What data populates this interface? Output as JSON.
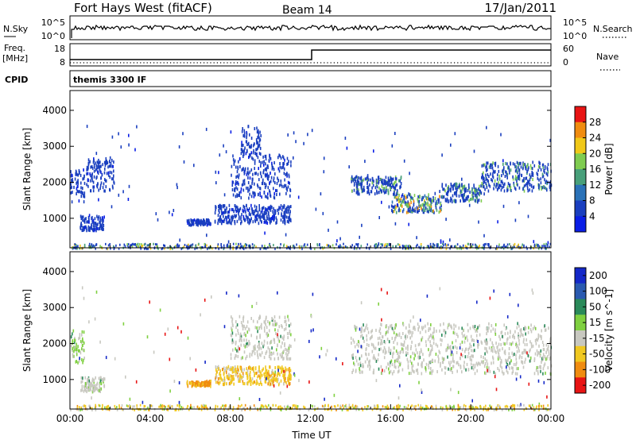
{
  "header": {
    "station": "Fort Hays West (fitACF)",
    "beam": "Beam 14",
    "date": "17/Jan/2011"
  },
  "status_panels": {
    "nsky_label": "N.Sky",
    "nsky_top_tick": "10^5",
    "nsky_bottom_tick": "10^0",
    "nsearch_label": "N.Search",
    "nsearch_top_tick": "10^5",
    "nsearch_bottom_tick": "10^0",
    "freq_label_1": "Freq.",
    "freq_label_2": "[MHz]",
    "freq_top_tick": "18",
    "freq_bottom_tick": "8",
    "nave_label": "Nave",
    "nave_top_tick": "60",
    "nave_bottom_tick": "0",
    "cpid_label": "CPID",
    "cpid_value": "themis 3300 IF"
  },
  "chart_data": [
    {
      "type": "heatmap",
      "panel": "power",
      "ylabel": "Slant Range [km]",
      "y_ticks": [
        "1000",
        "2000",
        "3000",
        "4000"
      ],
      "ylim": [
        180,
        4550
      ],
      "colorbar_label": "Power [dB]",
      "colorbar_ticks": [
        "4",
        "8",
        "12",
        "16",
        "20",
        "24",
        "28"
      ],
      "colors": [
        "#0a1ee6",
        "#1a3fbf",
        "#2a72b8",
        "#48a07a",
        "#7fcc50",
        "#f0c818",
        "#f08c10",
        "#e81414"
      ],
      "echo_regions": [
        {
          "x_hours": [
            0.0,
            0.7
          ],
          "range_km": [
            1500,
            2400
          ],
          "level": 1
        },
        {
          "x_hours": [
            0.5,
            1.7
          ],
          "range_km": [
            700,
            1100
          ],
          "level": 1
        },
        {
          "x_hours": [
            0.8,
            2.2
          ],
          "range_km": [
            1800,
            2700
          ],
          "level": 1
        },
        {
          "x_hours": [
            5.8,
            7.0
          ],
          "range_km": [
            850,
            1000
          ],
          "level": 1
        },
        {
          "x_hours": [
            7.2,
            11.0
          ],
          "range_km": [
            900,
            1400
          ],
          "level": 1
        },
        {
          "x_hours": [
            8.0,
            11.0
          ],
          "range_km": [
            1600,
            2800
          ],
          "level": 1
        },
        {
          "x_hours": [
            8.5,
            9.5
          ],
          "range_km": [
            2800,
            3600
          ],
          "level": 1
        },
        {
          "x_hours": [
            14.0,
            16.5
          ],
          "range_km": [
            1700,
            2200
          ],
          "level": 2
        },
        {
          "x_hours": [
            16.0,
            18.5
          ],
          "range_km": [
            1200,
            1700
          ],
          "level": 3
        },
        {
          "x_hours": [
            18.5,
            20.5
          ],
          "range_km": [
            1500,
            2000
          ],
          "level": 2
        },
        {
          "x_hours": [
            20.5,
            24.0
          ],
          "range_km": [
            1800,
            2600
          ],
          "level": 2
        }
      ],
      "ground_scatter_band_km": [
        180,
        320
      ]
    },
    {
      "type": "heatmap",
      "panel": "velocity",
      "xlabel": "Time UT",
      "ylabel": "Slant Range [km]",
      "x_ticks": [
        "00:00",
        "04:00",
        "08:00",
        "12:00",
        "16:00",
        "20:00",
        "00:00"
      ],
      "xlim_hours": [
        0,
        24
      ],
      "y_ticks": [
        "1000",
        "2000",
        "3000",
        "4000"
      ],
      "ylim": [
        180,
        4550
      ],
      "colorbar_label": "Velocity [m s^-1]",
      "colorbar_ticks": [
        "200",
        "100",
        "50",
        "15",
        "-15",
        "-50",
        "-100",
        "-200"
      ],
      "colors": [
        "#1428c8",
        "#2a5ab0",
        "#2a8a5a",
        "#7fd040",
        "#c8c8c0",
        "#f0c820",
        "#f08c10",
        "#e81414"
      ],
      "echo_regions": [
        {
          "x_hours": [
            0.0,
            0.7
          ],
          "range_km": [
            1500,
            2400
          ],
          "level": 3
        },
        {
          "x_hours": [
            0.5,
            1.7
          ],
          "range_km": [
            700,
            1100
          ],
          "level": 4
        },
        {
          "x_hours": [
            5.8,
            7.0
          ],
          "range_km": [
            850,
            1000
          ],
          "level": 6
        },
        {
          "x_hours": [
            7.2,
            11.0
          ],
          "range_km": [
            900,
            1400
          ],
          "level": 5
        },
        {
          "x_hours": [
            8.0,
            11.0
          ],
          "range_km": [
            1600,
            2800
          ],
          "level": 4
        },
        {
          "x_hours": [
            14.0,
            24.0
          ],
          "range_km": [
            1200,
            2600
          ],
          "level": 4
        }
      ]
    }
  ]
}
